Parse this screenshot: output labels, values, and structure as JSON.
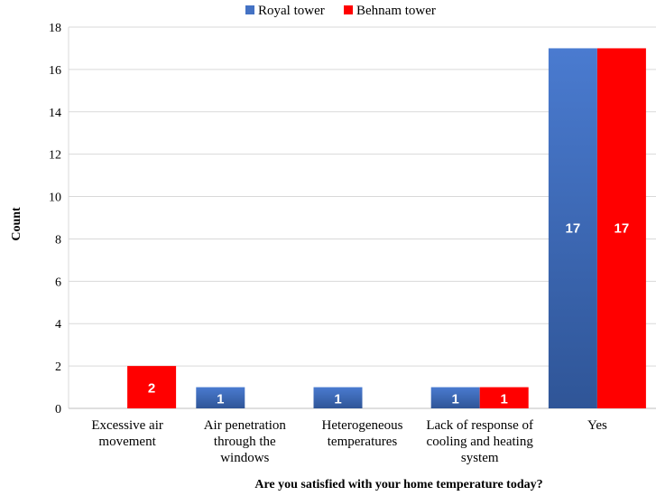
{
  "chart_data": {
    "type": "bar",
    "categories": [
      [
        "Excessive air",
        "movement"
      ],
      [
        "Air penetration",
        "through the",
        "windows"
      ],
      [
        "Heterogeneous",
        "temperatures"
      ],
      [
        "Lack of response of",
        "cooling and heating",
        "system"
      ],
      [
        "Yes"
      ]
    ],
    "series": [
      {
        "name": "Royal tower",
        "color": "#4472c4",
        "values": [
          0,
          1,
          1,
          1,
          17
        ],
        "labels": [
          "",
          "1",
          "1",
          "1",
          "17"
        ]
      },
      {
        "name": "Behnam tower",
        "color": "#ff0000",
        "values": [
          2,
          0,
          0,
          1,
          17
        ],
        "labels": [
          "2",
          "",
          "",
          "1",
          "17"
        ]
      }
    ],
    "xlabel": "Are you satisfied with your home temperature today?",
    "ylabel": "Count",
    "ylim": [
      0,
      18
    ],
    "yticks": [
      "0",
      "2",
      "4",
      "6",
      "8",
      "10",
      "12",
      "14",
      "16",
      "18"
    ],
    "grid": true,
    "legend": "top"
  }
}
